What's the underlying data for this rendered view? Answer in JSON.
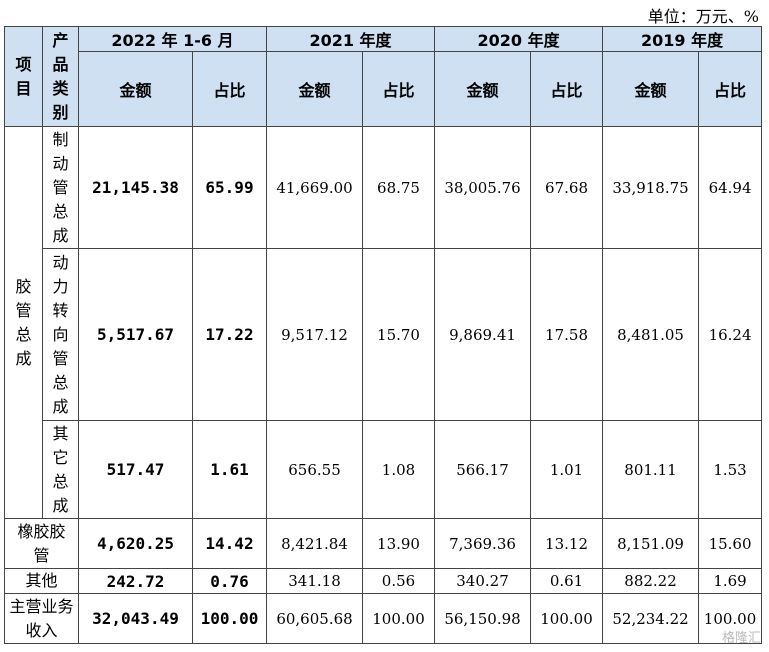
{
  "unit": "单位：万元、%",
  "header": {
    "project": "项目",
    "category": "产品类别",
    "periods": [
      "2022 年 1-6 月",
      "2021 年度",
      "2020 年度",
      "2019 年度"
    ],
    "amount": "金额",
    "ratio": "占比"
  },
  "group_label": "胶管总成",
  "rows": [
    {
      "label": "制动管总成",
      "vals": [
        "21,145.38",
        "65.99",
        "41,669.00",
        "68.75",
        "38,005.76",
        "67.68",
        "33,918.75",
        "64.94"
      ]
    },
    {
      "label": "动力转向管总成",
      "vals": [
        "5,517.67",
        "17.22",
        "9,517.12",
        "15.70",
        "9,869.41",
        "17.58",
        "8,481.05",
        "16.24"
      ]
    },
    {
      "label": "其它总成",
      "vals": [
        "517.47",
        "1.61",
        "656.55",
        "1.08",
        "566.17",
        "1.01",
        "801.11",
        "1.53"
      ]
    }
  ],
  "other_rows": [
    {
      "label": "橡胶胶管",
      "vals": [
        "4,620.25",
        "14.42",
        "8,421.84",
        "13.90",
        "7,369.36",
        "13.12",
        "8,151.09",
        "15.60"
      ]
    },
    {
      "label": "其他",
      "vals": [
        "242.72",
        "0.76",
        "341.18",
        "0.56",
        "340.27",
        "0.61",
        "882.22",
        "1.69"
      ]
    },
    {
      "label": "主营业务收入",
      "vals": [
        "32,043.49",
        "100.00",
        "60,605.68",
        "100.00",
        "56,150.98",
        "100.00",
        "52,234.22",
        "100.00"
      ]
    }
  ],
  "watermark": "格隆汇"
}
